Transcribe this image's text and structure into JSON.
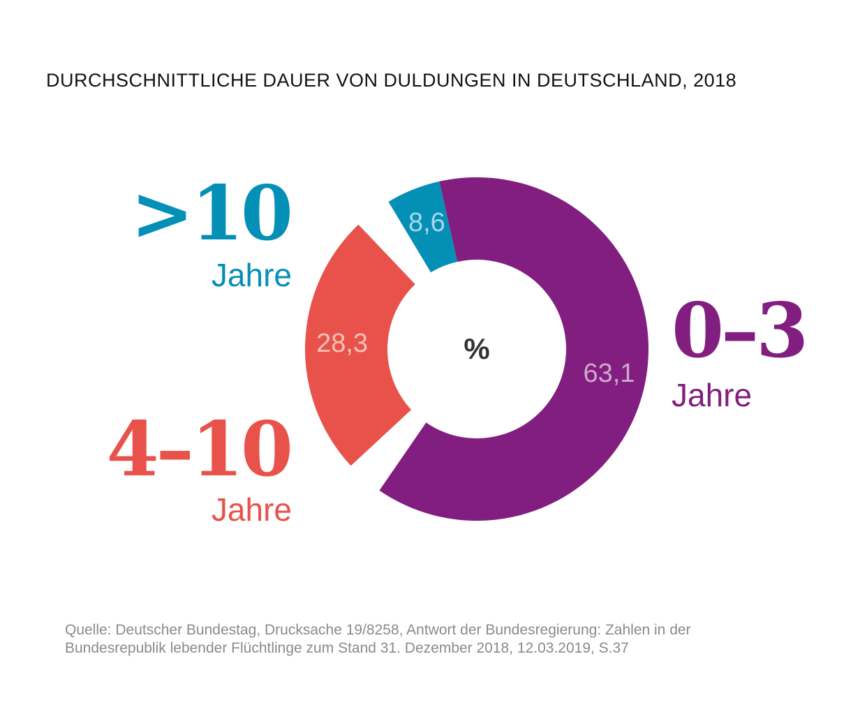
{
  "title": "DURCHSCHNITTLICHE DAUER VON DULDUNGEN IN DEUTSCHLAND, 2018",
  "center_label": "%",
  "colors": {
    "purple": "#821e7f",
    "red": "#e8524a",
    "teal": "#0490b6",
    "value_purple": "#cfa8cd",
    "value_red": "#f7c0b8",
    "value_teal": "#a8d8ea"
  },
  "labels": {
    "gt10": {
      "big": ">10",
      "unit": "Jahre"
    },
    "r4_10": {
      "big": "4–10",
      "unit": "Jahre"
    },
    "r0_3": {
      "big": "0–3",
      "unit": "Jahre"
    }
  },
  "chart_data": {
    "type": "pie",
    "title": "DURCHSCHNITTLICHE DAUER VON DULDUNGEN IN DEUTSCHLAND, 2018",
    "unit": "%",
    "categories": [
      "0–3 Jahre",
      "4–10 Jahre",
      ">10 Jahre"
    ],
    "values": [
      63.1,
      28.3,
      8.6
    ],
    "value_labels": [
      "63,1",
      "28,3",
      "8,6"
    ]
  },
  "source": {
    "line1": "Quelle: Deutscher Bundestag, Drucksache 19/8258, Antwort der Bundesregierung: Zahlen in der",
    "line2": "Bundesrepublik lebender Flüchtlinge zum Stand 31. Dezember 2018, 12.03.2019, S.37"
  }
}
